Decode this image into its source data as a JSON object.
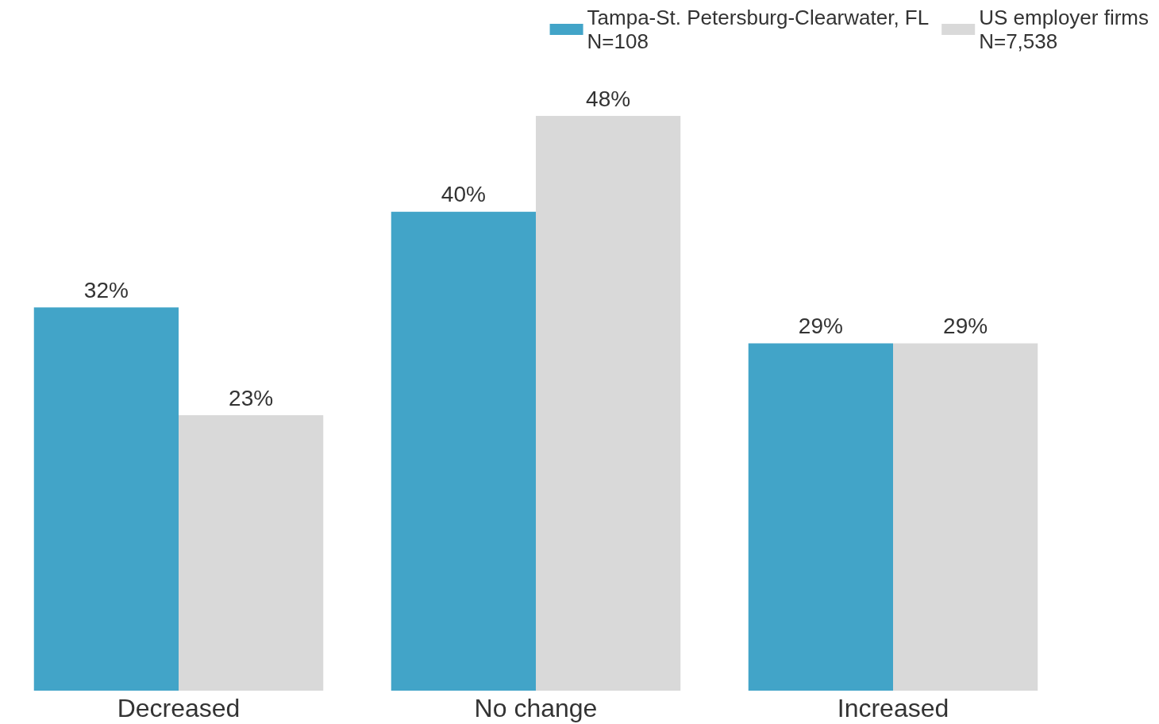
{
  "chart_data": {
    "type": "bar",
    "categories": [
      "Decreased",
      "No change",
      "Increased"
    ],
    "series": [
      {
        "name": "Tampa-St. Petersburg-Clearwater, FL\nN=108",
        "color": "#42a4c8",
        "values": [
          32,
          40,
          29
        ],
        "value_labels": [
          "32%",
          "40%",
          "29%"
        ]
      },
      {
        "name": "US employer firms\nN=7,538",
        "color": "#d9d9d9",
        "values": [
          23,
          48,
          29
        ],
        "value_labels": [
          "23%",
          "48%",
          "29%"
        ]
      }
    ],
    "legend": "top right"
  }
}
